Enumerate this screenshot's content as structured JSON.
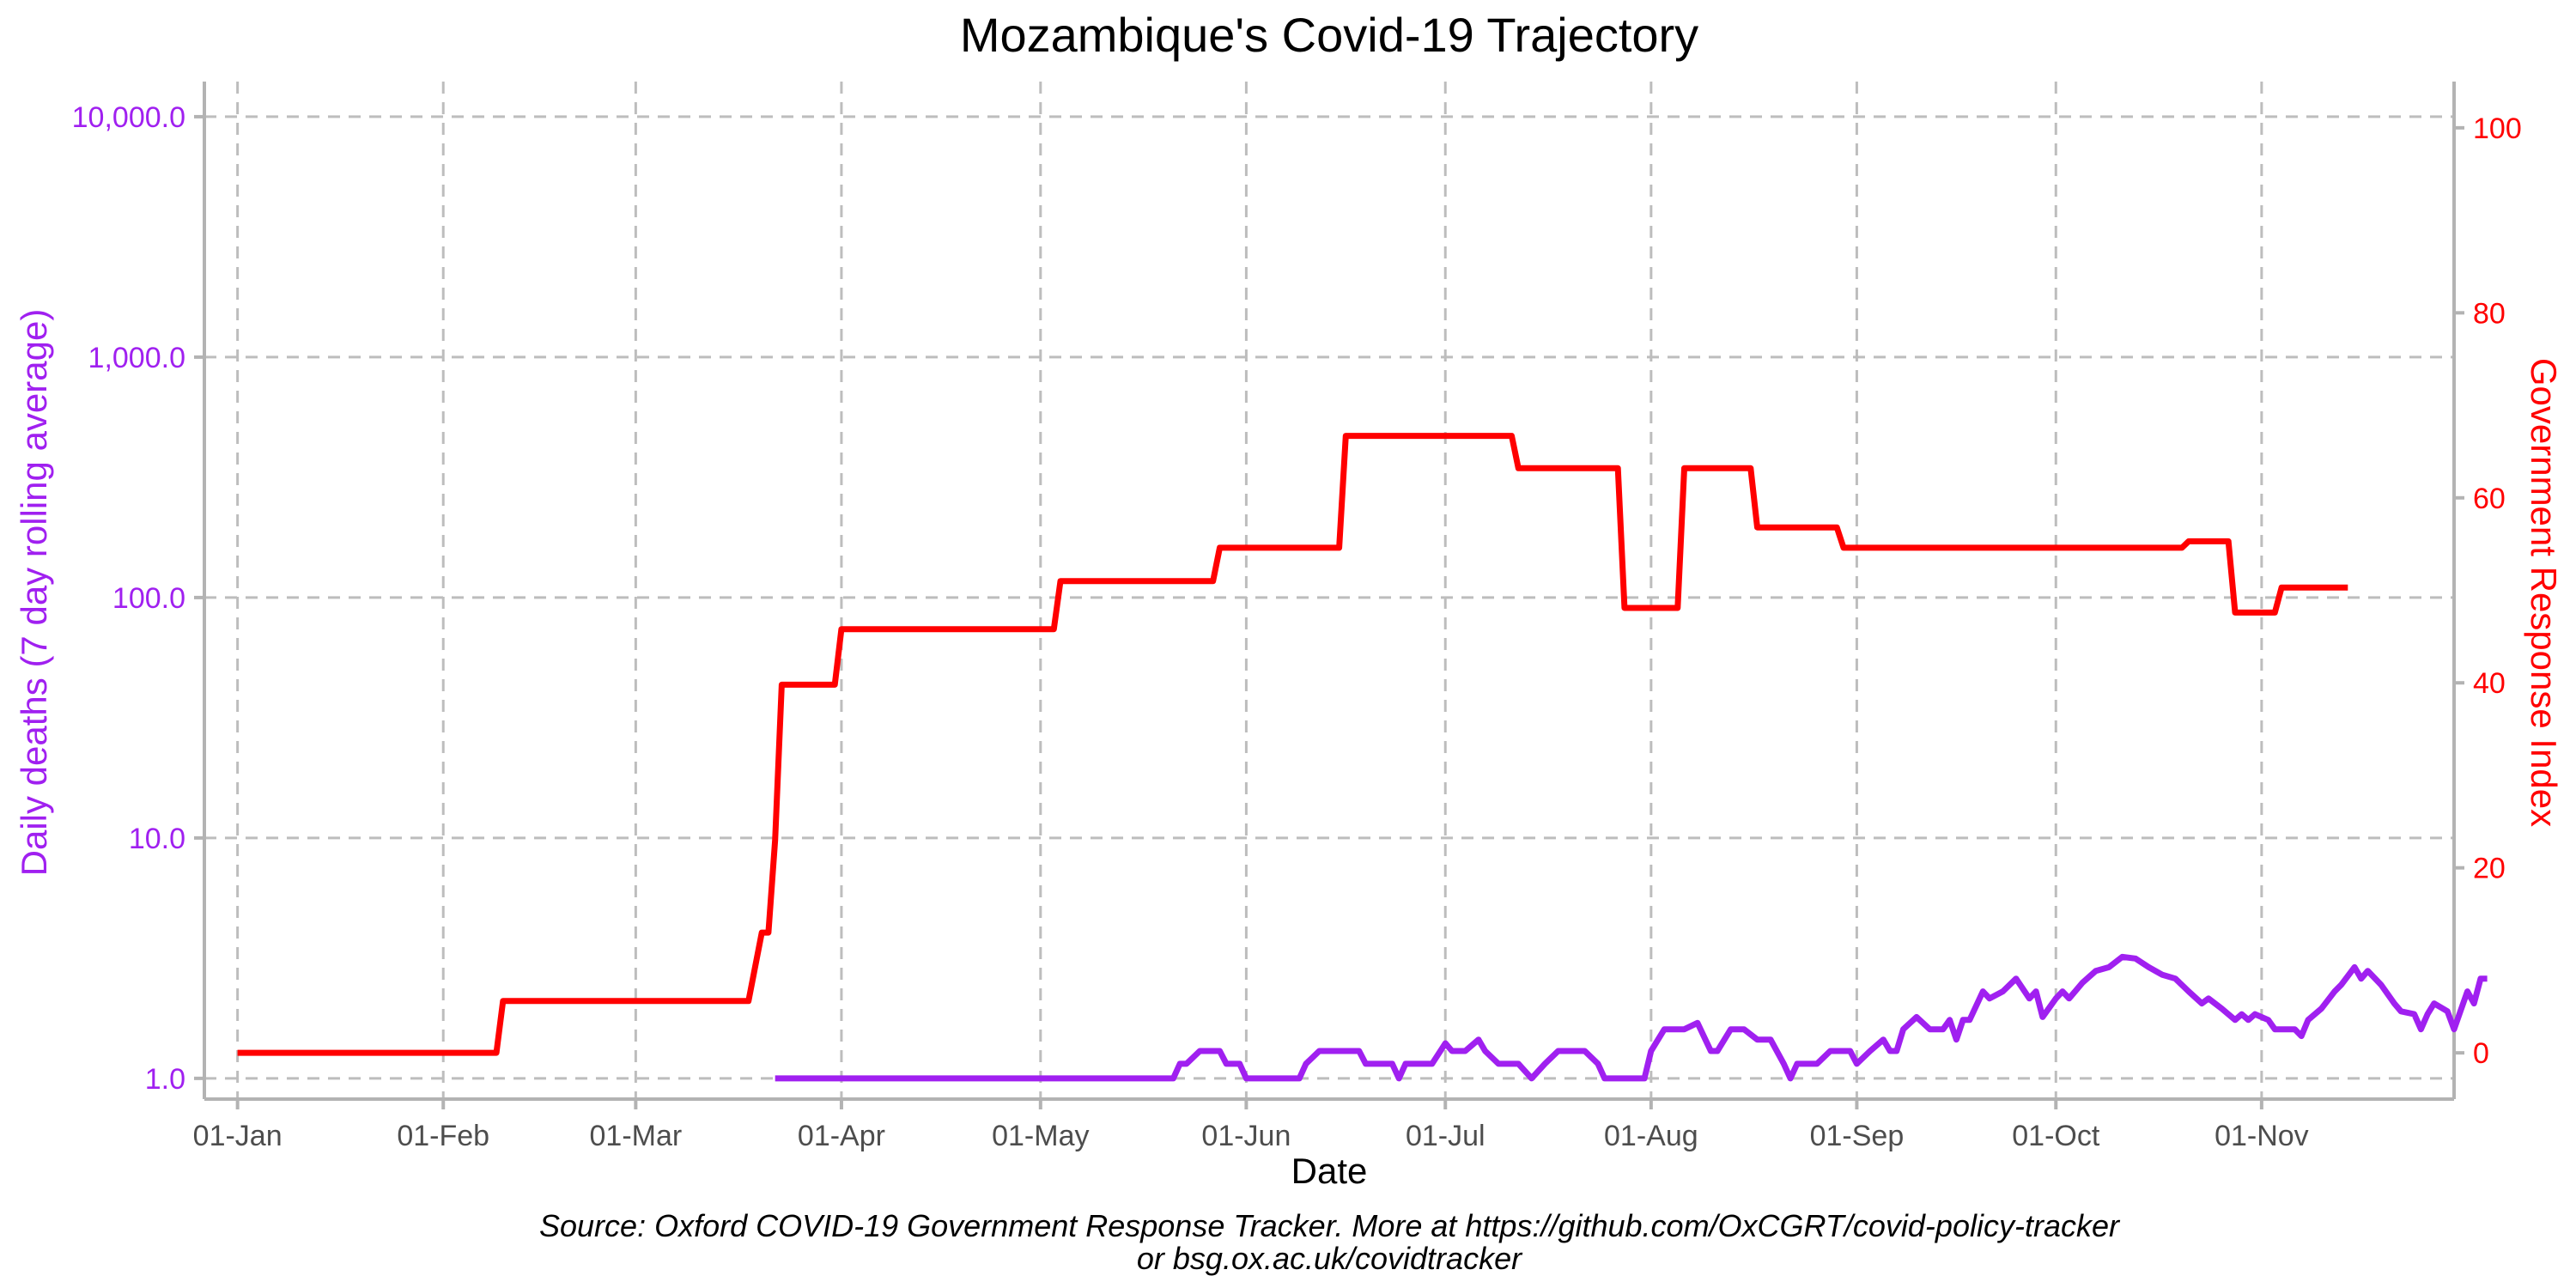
{
  "chart_data": {
    "type": "line",
    "title": "Mozambique's Covid-19 Trajectory",
    "xlabel": "Date",
    "ylabel_left": "Daily deaths (7 day rolling average)",
    "ylabel_right": "Government Response Index",
    "caption_line1": "Source: Oxford COVID-19 Government Response Tracker. More at https://github.com/OxCGRT/covid-policy-tracker",
    "caption_line2": "or bsg.ox.ac.uk/covidtracker",
    "x_range": [
      "2019-12-27",
      "2020-11-30"
    ],
    "x_ticks": [
      {
        "date": "2020-01-01",
        "label": "01-Jan"
      },
      {
        "date": "2020-02-01",
        "label": "01-Feb"
      },
      {
        "date": "2020-03-01",
        "label": "01-Mar"
      },
      {
        "date": "2020-04-01",
        "label": "01-Apr"
      },
      {
        "date": "2020-05-01",
        "label": "01-May"
      },
      {
        "date": "2020-06-01",
        "label": "01-Jun"
      },
      {
        "date": "2020-07-01",
        "label": "01-Jul"
      },
      {
        "date": "2020-08-01",
        "label": "01-Aug"
      },
      {
        "date": "2020-09-01",
        "label": "01-Sep"
      },
      {
        "date": "2020-10-01",
        "label": "01-Oct"
      },
      {
        "date": "2020-11-01",
        "label": "01-Nov"
      }
    ],
    "y_left": {
      "scale": "log10",
      "range": [
        0.82,
        14000
      ],
      "ticks": [
        {
          "value": 1,
          "label": "1.0"
        },
        {
          "value": 10,
          "label": "10.0"
        },
        {
          "value": 100,
          "label": "100.0"
        },
        {
          "value": 1000,
          "label": "1,000.0"
        },
        {
          "value": 10000,
          "label": "10,000.0"
        }
      ]
    },
    "y_right": {
      "scale": "linear",
      "range": [
        -5,
        105
      ],
      "ticks": [
        {
          "value": 0,
          "label": "0"
        },
        {
          "value": 20,
          "label": "20"
        },
        {
          "value": 40,
          "label": "40"
        },
        {
          "value": 60,
          "label": "60"
        },
        {
          "value": 80,
          "label": "80"
        },
        {
          "value": 100,
          "label": "100"
        }
      ]
    },
    "grid": true,
    "colors": {
      "deaths": "#a020f0",
      "stringency": "#ff0000",
      "left_axis_text": "#a020f0",
      "right_axis_text": "#ff0000"
    },
    "series": [
      {
        "axis": "right",
        "color": "#ff0000",
        "points": [
          [
            "2020-01-01",
            0
          ],
          [
            "2020-02-09",
            0
          ],
          [
            "2020-02-10",
            5.6
          ],
          [
            "2020-03-18",
            5.6
          ],
          [
            "2020-03-20",
            13
          ],
          [
            "2020-03-21",
            13
          ],
          [
            "2020-03-22",
            23
          ],
          [
            "2020-03-23",
            39.8
          ],
          [
            "2020-03-31",
            39.8
          ],
          [
            "2020-04-01",
            45.8
          ],
          [
            "2020-05-03",
            45.8
          ],
          [
            "2020-05-04",
            51
          ],
          [
            "2020-05-27",
            51
          ],
          [
            "2020-05-28",
            54.6
          ],
          [
            "2020-06-15",
            54.6
          ],
          [
            "2020-06-16",
            66.7
          ],
          [
            "2020-07-11",
            66.7
          ],
          [
            "2020-07-12",
            63.2
          ],
          [
            "2020-07-27",
            63.2
          ],
          [
            "2020-07-28",
            48.1
          ],
          [
            "2020-08-05",
            48.1
          ],
          [
            "2020-08-06",
            63.2
          ],
          [
            "2020-08-16",
            63.2
          ],
          [
            "2020-08-17",
            56.8
          ],
          [
            "2020-08-29",
            56.8
          ],
          [
            "2020-08-30",
            54.6
          ],
          [
            "2020-10-20",
            54.6
          ],
          [
            "2020-10-21",
            55.3
          ],
          [
            "2020-10-27",
            55.3
          ],
          [
            "2020-10-28",
            47.6
          ],
          [
            "2020-11-03",
            47.6
          ],
          [
            "2020-11-04",
            50.3
          ],
          [
            "2020-11-14",
            50.3
          ]
        ]
      },
      {
        "axis": "left",
        "color": "#a020f0",
        "points": [
          [
            "2020-03-22",
            1
          ],
          [
            "2020-05-21",
            1
          ],
          [
            "2020-05-22",
            1.15
          ],
          [
            "2020-05-23",
            1.15
          ],
          [
            "2020-05-25",
            1.3
          ],
          [
            "2020-05-28",
            1.3
          ],
          [
            "2020-05-29",
            1.15
          ],
          [
            "2020-05-31",
            1.15
          ],
          [
            "2020-06-01",
            1
          ],
          [
            "2020-06-09",
            1
          ],
          [
            "2020-06-10",
            1.15
          ],
          [
            "2020-06-12",
            1.3
          ],
          [
            "2020-06-18",
            1.3
          ],
          [
            "2020-06-19",
            1.15
          ],
          [
            "2020-06-23",
            1.15
          ],
          [
            "2020-06-24",
            1
          ],
          [
            "2020-06-25",
            1.15
          ],
          [
            "2020-06-29",
            1.15
          ],
          [
            "2020-07-01",
            1.4
          ],
          [
            "2020-07-02",
            1.3
          ],
          [
            "2020-07-04",
            1.3
          ],
          [
            "2020-07-06",
            1.45
          ],
          [
            "2020-07-07",
            1.3
          ],
          [
            "2020-07-09",
            1.15
          ],
          [
            "2020-07-12",
            1.15
          ],
          [
            "2020-07-14",
            1
          ],
          [
            "2020-07-16",
            1.15
          ],
          [
            "2020-07-18",
            1.3
          ],
          [
            "2020-07-22",
            1.3
          ],
          [
            "2020-07-24",
            1.15
          ],
          [
            "2020-07-25",
            1
          ],
          [
            "2020-07-31",
            1
          ],
          [
            "2020-08-01",
            1.3
          ],
          [
            "2020-08-03",
            1.6
          ],
          [
            "2020-08-06",
            1.6
          ],
          [
            "2020-08-08",
            1.7
          ],
          [
            "2020-08-10",
            1.3
          ],
          [
            "2020-08-11",
            1.3
          ],
          [
            "2020-08-13",
            1.6
          ],
          [
            "2020-08-15",
            1.6
          ],
          [
            "2020-08-17",
            1.45
          ],
          [
            "2020-08-19",
            1.45
          ],
          [
            "2020-08-21",
            1.15
          ],
          [
            "2020-08-22",
            1
          ],
          [
            "2020-08-23",
            1.15
          ],
          [
            "2020-08-26",
            1.15
          ],
          [
            "2020-08-28",
            1.3
          ],
          [
            "2020-08-31",
            1.3
          ],
          [
            "2020-09-01",
            1.15
          ],
          [
            "2020-09-03",
            1.3
          ],
          [
            "2020-09-05",
            1.45
          ],
          [
            "2020-09-06",
            1.3
          ],
          [
            "2020-09-07",
            1.3
          ],
          [
            "2020-09-08",
            1.6
          ],
          [
            "2020-09-10",
            1.8
          ],
          [
            "2020-09-12",
            1.6
          ],
          [
            "2020-09-14",
            1.6
          ],
          [
            "2020-09-15",
            1.75
          ],
          [
            "2020-09-16",
            1.45
          ],
          [
            "2020-09-17",
            1.75
          ],
          [
            "2020-09-18",
            1.75
          ],
          [
            "2020-09-20",
            2.3
          ],
          [
            "2020-09-21",
            2.15
          ],
          [
            "2020-09-23",
            2.3
          ],
          [
            "2020-09-25",
            2.6
          ],
          [
            "2020-09-27",
            2.15
          ],
          [
            "2020-09-28",
            2.3
          ],
          [
            "2020-09-29",
            1.8
          ],
          [
            "2020-10-01",
            2.15
          ],
          [
            "2020-10-02",
            2.3
          ],
          [
            "2020-10-03",
            2.15
          ],
          [
            "2020-10-05",
            2.5
          ],
          [
            "2020-10-07",
            2.8
          ],
          [
            "2020-10-09",
            2.9
          ],
          [
            "2020-10-11",
            3.2
          ],
          [
            "2020-10-13",
            3.15
          ],
          [
            "2020-10-15",
            2.9
          ],
          [
            "2020-10-17",
            2.7
          ],
          [
            "2020-10-19",
            2.6
          ],
          [
            "2020-10-21",
            2.3
          ],
          [
            "2020-10-23",
            2.05
          ],
          [
            "2020-10-24",
            2.15
          ],
          [
            "2020-10-26",
            1.95
          ],
          [
            "2020-10-28",
            1.75
          ],
          [
            "2020-10-29",
            1.85
          ],
          [
            "2020-10-30",
            1.75
          ],
          [
            "2020-10-31",
            1.85
          ],
          [
            "2020-11-02",
            1.75
          ],
          [
            "2020-11-03",
            1.6
          ],
          [
            "2020-11-06",
            1.6
          ],
          [
            "2020-11-07",
            1.5
          ],
          [
            "2020-11-08",
            1.75
          ],
          [
            "2020-11-10",
            1.95
          ],
          [
            "2020-11-12",
            2.3
          ],
          [
            "2020-11-13",
            2.45
          ],
          [
            "2020-11-15",
            2.9
          ],
          [
            "2020-11-16",
            2.6
          ],
          [
            "2020-11-17",
            2.8
          ],
          [
            "2020-11-19",
            2.45
          ],
          [
            "2020-11-21",
            2.05
          ],
          [
            "2020-11-22",
            1.9
          ],
          [
            "2020-11-24",
            1.85
          ],
          [
            "2020-11-25",
            1.6
          ],
          [
            "2020-11-26",
            1.85
          ],
          [
            "2020-11-27",
            2.05
          ],
          [
            "2020-11-29",
            1.9
          ],
          [
            "2020-11-30",
            1.6
          ],
          [
            "2020-12-02",
            2.3
          ],
          [
            "2020-12-03",
            2.05
          ],
          [
            "2020-12-04",
            2.6
          ],
          [
            "2020-12-05",
            2.6
          ]
        ]
      }
    ]
  }
}
